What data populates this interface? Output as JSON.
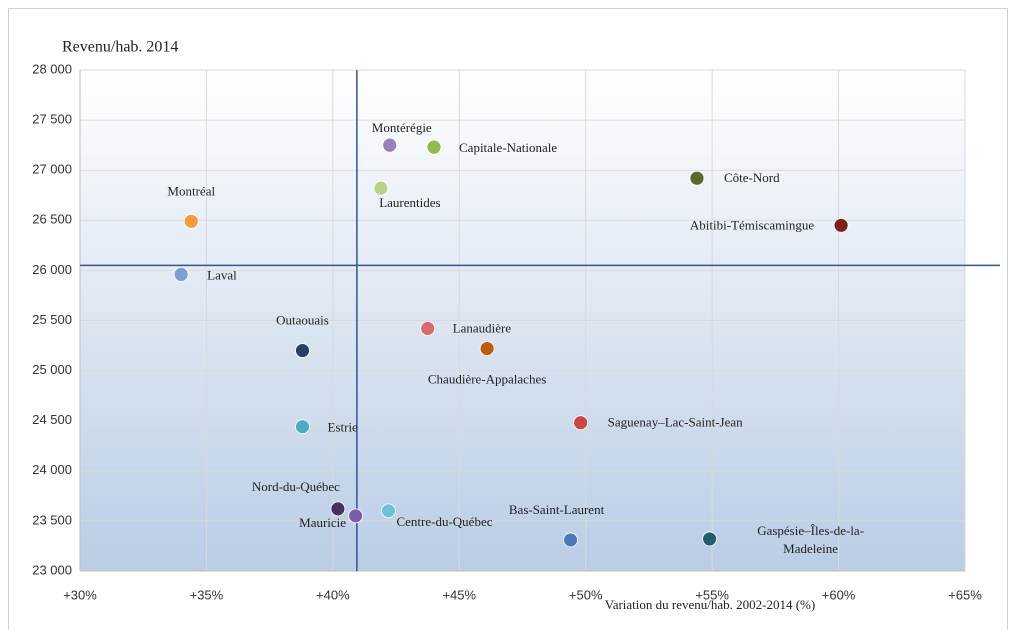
{
  "chart_data": {
    "type": "scatter",
    "title": "Revenu/hab. 2014",
    "x_label": "Variation du revenu/hab. 2002-2014  (%)",
    "points": [
      {
        "name": "Montérégie",
        "x": 42.25,
        "y": 27250,
        "color": "#9a7fbf"
      },
      {
        "name": "Capitale-Nationale",
        "x": 44.0,
        "y": 27230,
        "color": "#8fbc4a"
      },
      {
        "name": "Côte-Nord",
        "x": 54.4,
        "y": 26920,
        "color": "#566b2a"
      },
      {
        "name": "Abitibi-Témiscamingue",
        "x": 60.1,
        "y": 26450,
        "color": "#7f2020"
      },
      {
        "name": "Montréal",
        "x": 34.4,
        "y": 26490,
        "color": "#f79a3e"
      },
      {
        "name": "Laurentides",
        "x": 41.9,
        "y": 26820,
        "color": "#b7d38a"
      },
      {
        "name": "Laval",
        "x": 34.0,
        "y": 25960,
        "color": "#7e9fd4"
      },
      {
        "name": "Outaouais",
        "x": 38.8,
        "y": 25200,
        "color": "#253f66"
      },
      {
        "name": "Lanaudière",
        "x": 43.75,
        "y": 25420,
        "color": "#d96b6b"
      },
      {
        "name": "Chaudière-Appalaches",
        "x": 46.1,
        "y": 25220,
        "color": "#c05a0c"
      },
      {
        "name": "Saguenay–Lac-Saint-Jean",
        "x": 49.8,
        "y": 24480,
        "color": "#cc4444"
      },
      {
        "name": "Estrie",
        "x": 38.8,
        "y": 24440,
        "color": "#4bacc6"
      },
      {
        "name": "Nord-du-Québec",
        "x": 40.2,
        "y": 23620,
        "color": "#45325f"
      },
      {
        "name": "Mauricie",
        "x": 40.9,
        "y": 23550,
        "color": "#7c5ea8"
      },
      {
        "name": "Centre-du-Québec",
        "x": 42.2,
        "y": 23600,
        "color": "#6cc2d8"
      },
      {
        "name": "Bas-Saint-Laurent",
        "x": 49.4,
        "y": 23310,
        "color": "#4a78b8"
      },
      {
        "name": "Gaspésie–Îles-de-la-Madeleine",
        "x": 54.9,
        "y": 23320,
        "color": "#1e5e70"
      }
    ],
    "reference_x": 40.95,
    "reference_y": 26050,
    "xlim": [
      30,
      65
    ],
    "ylim": [
      23000,
      28000
    ],
    "xticks": [
      {
        "value": 30,
        "label": "+30%"
      },
      {
        "value": 35,
        "label": "+35%"
      },
      {
        "value": 40,
        "label": "+40%"
      },
      {
        "value": 45,
        "label": "+45%"
      },
      {
        "value": 50,
        "label": "+50%"
      },
      {
        "value": 55,
        "label": "+55%"
      },
      {
        "value": 60,
        "label": "+60%"
      },
      {
        "value": 65,
        "label": "+65%"
      }
    ],
    "yticks": [
      {
        "value": 23000,
        "label": "23 000"
      },
      {
        "value": 23500,
        "label": "23 500"
      },
      {
        "value": 24000,
        "label": "24 000"
      },
      {
        "value": 24500,
        "label": "24 500"
      },
      {
        "value": 25000,
        "label": "25 000"
      },
      {
        "value": 25500,
        "label": "25 500"
      },
      {
        "value": 26000,
        "label": "26 000"
      },
      {
        "value": 26500,
        "label": "26 500"
      },
      {
        "value": 27000,
        "label": "27 000"
      },
      {
        "value": 27500,
        "label": "27 500"
      },
      {
        "value": 28000,
        "label": "28 000"
      }
    ],
    "grid": true
  }
}
